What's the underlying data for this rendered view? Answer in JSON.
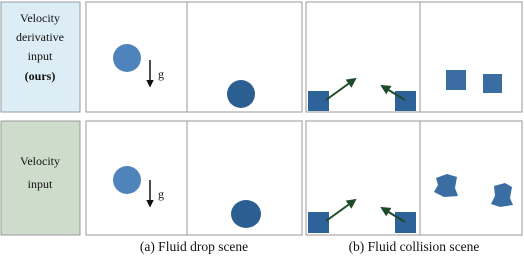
{
  "row_labels": [
    {
      "lines": [
        "Velocity",
        "derivative",
        "input"
      ],
      "emphasis": "(ours)"
    },
    {
      "lines": [
        "Velocity",
        "input"
      ]
    }
  ],
  "panels": {
    "drop_top": {
      "gravity_label": "g"
    },
    "drop_bottom": {
      "gravity_label": "g"
    }
  },
  "captions": [
    "(a) Fluid drop scene",
    "(b) Fluid collision scene"
  ]
}
